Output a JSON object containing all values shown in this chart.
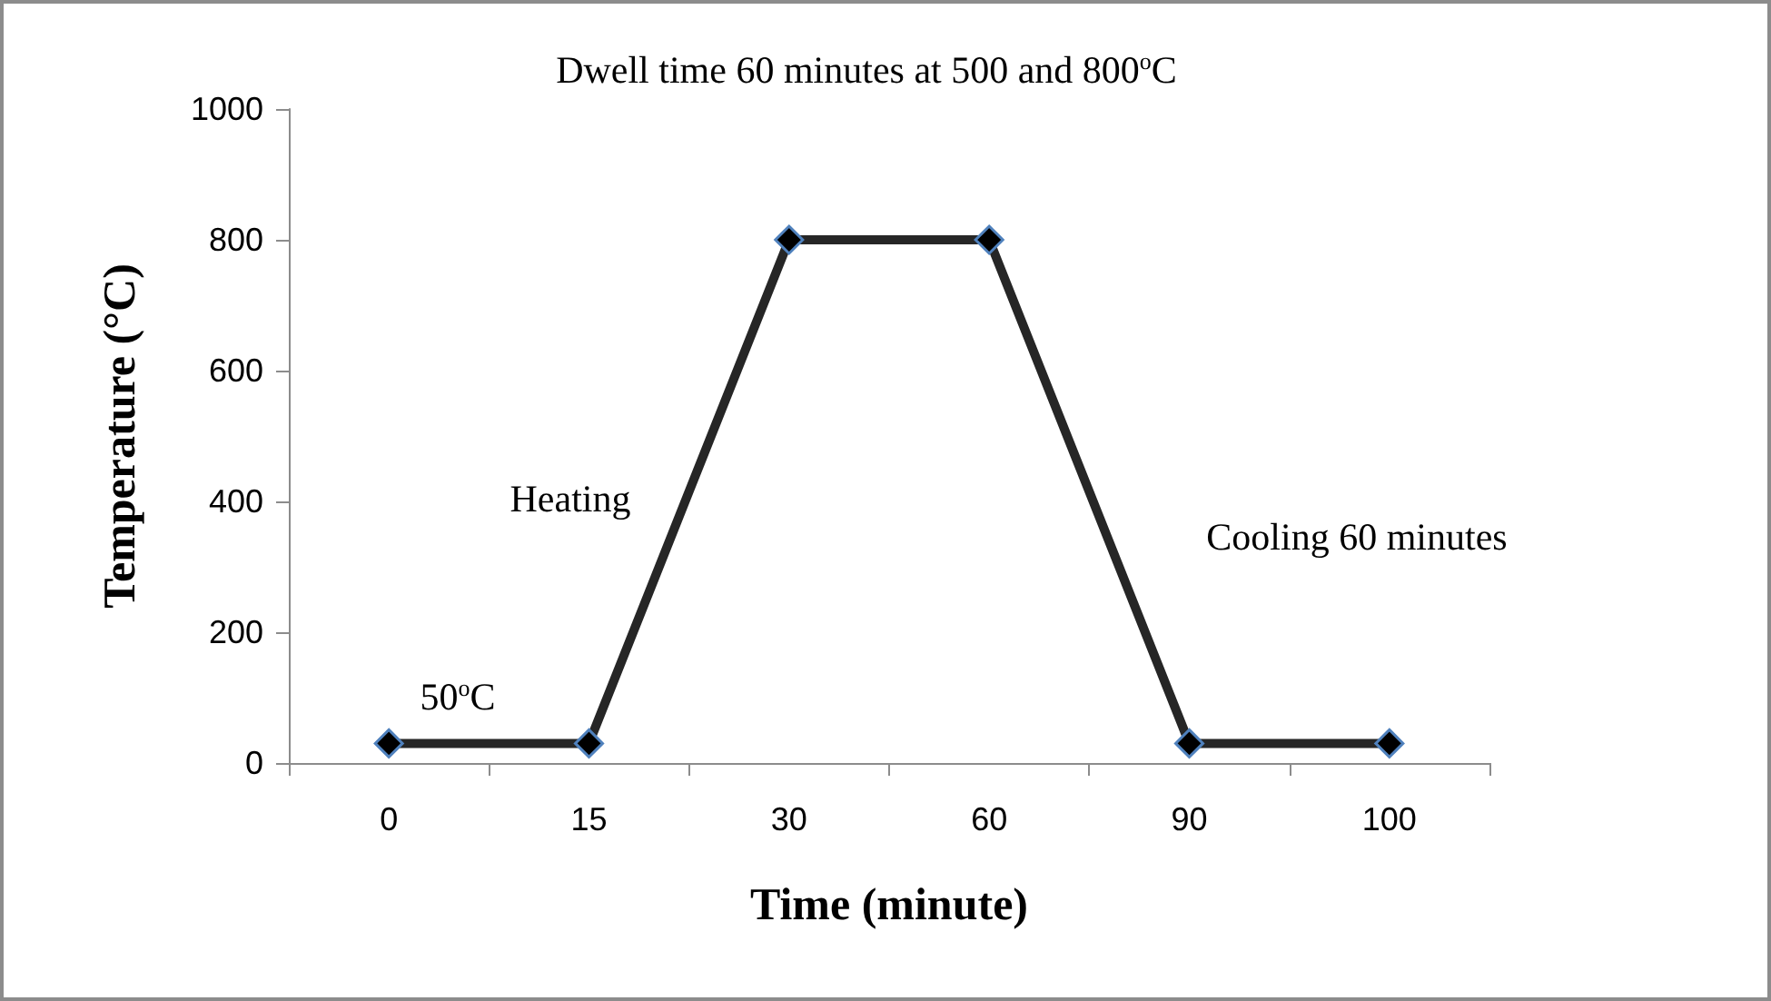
{
  "chart_data": {
    "type": "line",
    "xlabel": "Time (minute)",
    "ylabel": "Temperature (°C)",
    "categories": [
      "0",
      "15",
      "30",
      "60",
      "90",
      "100"
    ],
    "series": [
      {
        "color": "#262626",
        "values": [
          30,
          30,
          800,
          800,
          30,
          30
        ]
      }
    ],
    "ylim": [
      0,
      1000
    ],
    "yticks": [
      0,
      200,
      400,
      600,
      800,
      1000
    ],
    "grid": false,
    "marker": "diamond",
    "line_style": "solid",
    "annotations": [
      "Dwell time 60 minutes at 500 and 800$^{o}$C",
      "Heating",
      "Cooling 60 minutes",
      "50$^{o}$C"
    ]
  }
}
